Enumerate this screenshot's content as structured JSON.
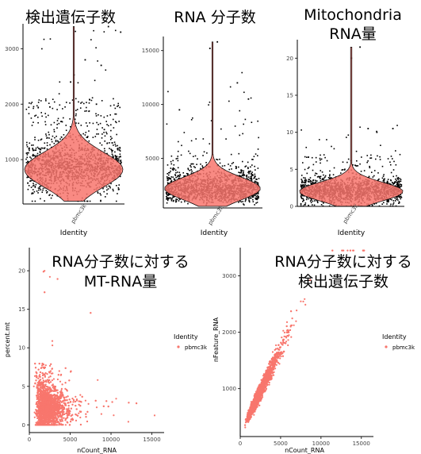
{
  "chart_data": [
    {
      "type": "violin",
      "title": "検出遺伝子数",
      "xlabel": "Identity",
      "ylabel": "",
      "categories": [
        "pbmc3k"
      ],
      "ylim": [
        200,
        3450
      ],
      "yticks": [
        1000,
        2000,
        3000
      ],
      "summary": {
        "median": 820,
        "q_low": 600,
        "q_high": 1050,
        "max": 3400,
        "min": 250
      },
      "points_approx_count": 2700,
      "color": "#F8766D",
      "grid": false
    },
    {
      "type": "violin",
      "title": "RNA 分子数",
      "xlabel": "Identity",
      "ylabel": "",
      "categories": [
        "pbmc3k"
      ],
      "ylim": [
        400,
        16300
      ],
      "yticks": [
        5000,
        10000,
        15000
      ],
      "summary": {
        "median": 2200,
        "q_low": 1500,
        "q_high": 3000,
        "max": 15800,
        "min": 550
      },
      "points_approx_count": 2700,
      "color": "#F8766D",
      "grid": false
    },
    {
      "type": "violin",
      "title": "Mitochondria\nRNA量",
      "xlabel": "Identity",
      "ylabel": "",
      "categories": [
        "pbmc3k"
      ],
      "ylim": [
        0,
        22.5
      ],
      "yticks": [
        0,
        5,
        10,
        15,
        20
      ],
      "summary": {
        "median": 2.0,
        "q_low": 1.2,
        "q_high": 3.0,
        "max": 21.5,
        "min": 0
      },
      "points_approx_count": 2700,
      "color": "#F8766D",
      "grid": false
    },
    {
      "type": "scatter",
      "title": "RNA分子数に対する\nMT-RNA量",
      "xlabel": "nCount_RNA",
      "ylabel": "percent.mt",
      "xlim": [
        0,
        16500
      ],
      "ylim": [
        -1,
        23
      ],
      "xticks": [
        0,
        5000,
        10000,
        15000
      ],
      "yticks": [
        0,
        5,
        10,
        15,
        20
      ],
      "legend": {
        "title": "Identity",
        "entries": [
          "pbmc3k"
        ],
        "position": "right"
      },
      "color": "#F8766D",
      "grid": false
    },
    {
      "type": "scatter",
      "title": "RNA分子数に対する\n検出遺伝子数",
      "xlabel": "nCount_RNA",
      "ylabel": "nFeature_RNA",
      "xlim": [
        0,
        16500
      ],
      "ylim": [
        150,
        3500
      ],
      "xticks": [
        0,
        5000,
        10000,
        15000
      ],
      "yticks": [
        1000,
        2000,
        3000
      ],
      "legend": {
        "title": "Identity",
        "entries": [
          "pbmc3k"
        ],
        "position": "right"
      },
      "color": "#F8766D",
      "grid": false
    }
  ]
}
